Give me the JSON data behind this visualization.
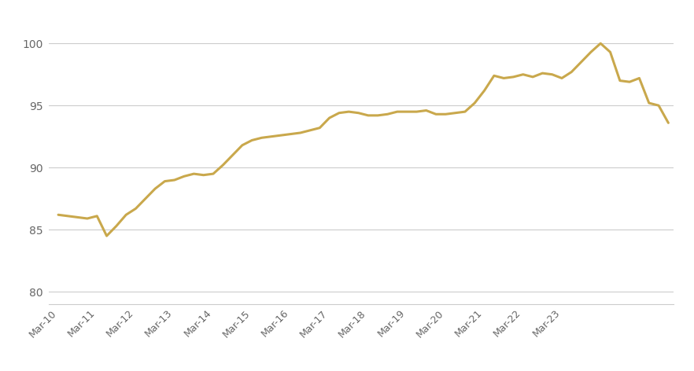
{
  "line_color": "#C9A84C",
  "line_width": 2.2,
  "background_color": "#ffffff",
  "grid_color": "#cccccc",
  "tick_label_color": "#666666",
  "ylim": [
    79,
    102
  ],
  "yticks": [
    80,
    85,
    90,
    95,
    100
  ],
  "x_labels": [
    "Mar-10",
    "Mar-11",
    "Mar-12",
    "Mar-13",
    "Mar-14",
    "Mar-15",
    "Mar-16",
    "Mar-17",
    "Mar-18",
    "Mar-19",
    "Mar-20",
    "Mar-21",
    "Mar-22",
    "Mar-23"
  ],
  "values": [
    86.2,
    86.1,
    86.0,
    85.9,
    86.1,
    84.5,
    85.3,
    86.2,
    86.7,
    87.5,
    88.3,
    88.9,
    89.0,
    89.3,
    89.5,
    89.4,
    89.5,
    90.2,
    91.0,
    91.8,
    92.2,
    92.4,
    92.5,
    92.6,
    92.7,
    92.8,
    93.0,
    93.2,
    94.0,
    94.4,
    94.5,
    94.4,
    94.2,
    94.2,
    94.3,
    94.5,
    94.5,
    94.5,
    94.6,
    94.3,
    94.3,
    94.4,
    94.5,
    95.2,
    96.2,
    97.4,
    97.2,
    97.3,
    97.5,
    97.3,
    97.6,
    97.5,
    97.2,
    97.7,
    98.5,
    99.3,
    100.0,
    99.3,
    97.0,
    96.9,
    97.2,
    95.2,
    95.0,
    93.6
  ],
  "x_tick_positions": [
    0,
    4,
    8,
    12,
    16,
    20,
    24,
    28,
    32,
    36,
    40,
    44,
    48,
    52
  ]
}
